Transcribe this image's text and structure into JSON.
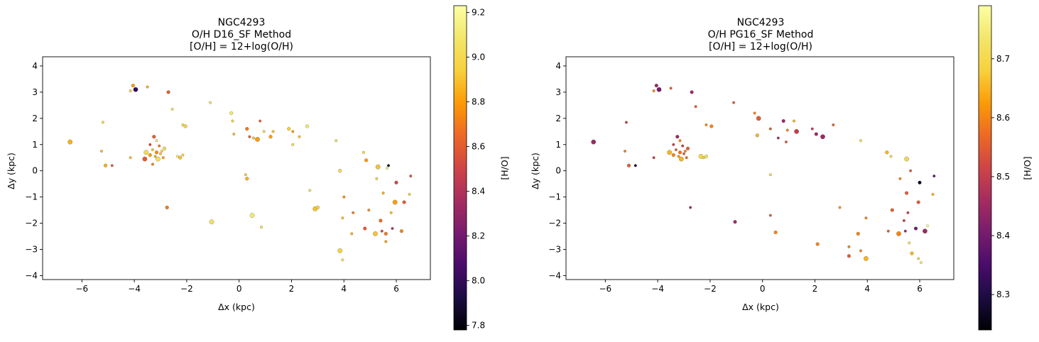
{
  "chart_data": [
    {
      "type": "scatter",
      "title_lines": [
        "NGC4293",
        "O/H D16_SF Method",
        "[O/H] = 12+log(O/H)"
      ],
      "xlabel": "Δx (kpc)",
      "ylabel": "Δy (kpc)",
      "xlim": [
        -7.5,
        7.3
      ],
      "ylim": [
        -4.15,
        4.35
      ],
      "xticks": [
        -6,
        -4,
        -2,
        0,
        2,
        4,
        6
      ],
      "yticks": [
        -4,
        -3,
        -2,
        -1,
        0,
        1,
        2,
        3,
        4
      ],
      "colorbar": {
        "label": "[H/O]",
        "colormap": "inferno",
        "range": [
          7.78,
          9.23
        ],
        "ticks": [
          7.8,
          8.0,
          8.2,
          8.4,
          8.6,
          8.8,
          9.0,
          9.2
        ]
      },
      "points": [
        [
          -6.45,
          1.1,
          8.85
        ],
        [
          -5.2,
          1.85,
          9.0
        ],
        [
          -5.25,
          0.75,
          8.9
        ],
        [
          -5.1,
          0.2,
          8.85
        ],
        [
          -4.85,
          0.2,
          8.6
        ],
        [
          -4.15,
          3.05,
          8.95
        ],
        [
          -4.05,
          3.25,
          8.8
        ],
        [
          -3.95,
          3.1,
          8.0
        ],
        [
          -3.5,
          3.2,
          8.85
        ],
        [
          -2.7,
          3.0,
          8.6
        ],
        [
          -2.55,
          2.35,
          9.05
        ],
        [
          -2.15,
          1.75,
          9.0
        ],
        [
          -2.05,
          1.7,
          8.95
        ],
        [
          -4.15,
          0.5,
          8.9
        ],
        [
          -3.55,
          0.7,
          9.0
        ],
        [
          -3.4,
          0.6,
          8.8
        ],
        [
          -3.3,
          0.8,
          8.9
        ],
        [
          -3.2,
          0.55,
          8.85
        ],
        [
          -3.15,
          0.7,
          8.75
        ],
        [
          -3.0,
          0.65,
          8.9
        ],
        [
          -2.95,
          0.75,
          8.95
        ],
        [
          -3.1,
          0.45,
          9.05
        ],
        [
          -3.05,
          0.95,
          8.7
        ],
        [
          -2.9,
          0.5,
          8.8
        ],
        [
          -3.25,
          1.3,
          8.6
        ],
        [
          -3.15,
          1.15,
          9.1
        ],
        [
          -3.4,
          1.0,
          8.5
        ],
        [
          -2.85,
          0.85,
          9.0
        ],
        [
          -3.6,
          0.45,
          8.6
        ],
        [
          -2.35,
          0.55,
          9.1
        ],
        [
          -2.25,
          0.5,
          8.9
        ],
        [
          -2.15,
          0.6,
          8.95
        ],
        [
          -3.3,
          0.25,
          8.7
        ],
        [
          -2.75,
          -1.4,
          8.7
        ],
        [
          -1.1,
          2.6,
          9.05
        ],
        [
          -1.05,
          -1.95,
          9.05
        ],
        [
          -0.3,
          2.2,
          9.1
        ],
        [
          -0.25,
          1.9,
          8.95
        ],
        [
          -0.2,
          1.4,
          8.9
        ],
        [
          0.3,
          1.6,
          8.7
        ],
        [
          0.4,
          1.3,
          8.6
        ],
        [
          0.55,
          1.25,
          8.9
        ],
        [
          0.7,
          1.2,
          8.8
        ],
        [
          0.8,
          1.9,
          8.6
        ],
        [
          0.95,
          1.5,
          9.0
        ],
        [
          1.2,
          1.3,
          8.8
        ],
        [
          1.3,
          1.5,
          8.9
        ],
        [
          0.25,
          -0.15,
          8.95
        ],
        [
          0.3,
          -0.3,
          8.85
        ],
        [
          0.5,
          -1.7,
          9.1
        ],
        [
          0.85,
          -2.15,
          9.05
        ],
        [
          1.9,
          1.6,
          8.95
        ],
        [
          2.05,
          1.5,
          8.8
        ],
        [
          2.3,
          1.3,
          8.9
        ],
        [
          2.6,
          1.7,
          9.1
        ],
        [
          2.05,
          1.0,
          9.0
        ],
        [
          2.9,
          -1.45,
          8.9
        ],
        [
          3.0,
          -1.4,
          8.95
        ],
        [
          2.7,
          -0.75,
          9.05
        ],
        [
          3.7,
          1.15,
          9.05
        ],
        [
          3.85,
          0.0,
          9.0
        ],
        [
          4.0,
          -1.0,
          8.75
        ],
        [
          3.95,
          -1.8,
          8.9
        ],
        [
          3.85,
          -3.05,
          8.95
        ],
        [
          3.95,
          -3.4,
          9.05
        ],
        [
          4.75,
          0.7,
          9.0
        ],
        [
          4.85,
          0.4,
          8.8
        ],
        [
          4.35,
          -1.6,
          8.7
        ],
        [
          4.3,
          -2.4,
          8.85
        ],
        [
          4.8,
          -2.2,
          8.6
        ],
        [
          5.2,
          -2.4,
          8.9
        ],
        [
          5.45,
          -2.3,
          8.5
        ],
        [
          5.6,
          -2.4,
          8.7
        ],
        [
          5.6,
          -2.7,
          8.8
        ],
        [
          5.85,
          -2.2,
          8.4
        ],
        [
          6.2,
          -2.3,
          8.75
        ],
        [
          5.8,
          -1.6,
          8.9
        ],
        [
          5.95,
          -1.2,
          8.8
        ],
        [
          6.3,
          -1.2,
          8.6
        ],
        [
          6.5,
          -0.9,
          8.95
        ],
        [
          6.55,
          -0.2,
          8.55
        ],
        [
          6.0,
          -0.45,
          8.5
        ],
        [
          5.65,
          0.1,
          9.15
        ],
        [
          5.7,
          0.2,
          7.8
        ],
        [
          5.3,
          0.15,
          8.9
        ],
        [
          5.25,
          -0.3,
          8.95
        ],
        [
          5.5,
          -0.85,
          8.85
        ],
        [
          5.4,
          -1.9,
          8.65
        ],
        [
          4.95,
          -1.5,
          8.75
        ]
      ]
    },
    {
      "type": "scatter",
      "title_lines": [
        "NGC4293",
        "O/H PG16_SF Method",
        "[O/H] = 12+log(O/H)"
      ],
      "xlabel": "Δx (kpc)",
      "ylabel": "Δy (kpc)",
      "xlim": [
        -7.5,
        7.3
      ],
      "ylim": [
        -4.15,
        4.35
      ],
      "xticks": [
        -6,
        -4,
        -2,
        0,
        2,
        4,
        6
      ],
      "yticks": [
        -4,
        -3,
        -2,
        -1,
        0,
        1,
        2,
        3,
        4
      ],
      "colorbar": {
        "label": "[H/O]",
        "colormap": "inferno",
        "range": [
          8.24,
          8.79
        ],
        "ticks": [
          8.3,
          8.4,
          8.5,
          8.6,
          8.7
        ]
      },
      "points": [
        [
          -6.45,
          1.1,
          8.45
        ],
        [
          -5.2,
          1.85,
          8.5
        ],
        [
          -5.25,
          0.75,
          8.6
        ],
        [
          -5.1,
          0.2,
          8.55
        ],
        [
          -4.85,
          0.2,
          8.25
        ],
        [
          -4.15,
          3.05,
          8.6
        ],
        [
          -4.05,
          3.25,
          8.45
        ],
        [
          -3.95,
          3.1,
          8.4
        ],
        [
          -3.5,
          3.15,
          8.55
        ],
        [
          -2.7,
          3.0,
          8.45
        ],
        [
          -2.55,
          2.45,
          8.55
        ],
        [
          -2.15,
          1.75,
          8.6
        ],
        [
          -1.95,
          1.7,
          8.6
        ],
        [
          -4.15,
          0.5,
          8.5
        ],
        [
          -3.55,
          0.7,
          8.65
        ],
        [
          -3.4,
          0.6,
          8.6
        ],
        [
          -3.3,
          0.8,
          8.55
        ],
        [
          -3.2,
          0.55,
          8.62
        ],
        [
          -3.15,
          0.7,
          8.58
        ],
        [
          -3.0,
          0.65,
          8.55
        ],
        [
          -2.95,
          0.75,
          8.6
        ],
        [
          -3.1,
          0.45,
          8.65
        ],
        [
          -3.05,
          0.95,
          8.5
        ],
        [
          -2.9,
          0.5,
          8.57
        ],
        [
          -3.25,
          1.3,
          8.45
        ],
        [
          -3.15,
          1.15,
          8.6
        ],
        [
          -3.4,
          1.0,
          8.5
        ],
        [
          -2.85,
          0.85,
          8.55
        ],
        [
          -2.35,
          0.55,
          8.7
        ],
        [
          -2.25,
          0.5,
          8.68
        ],
        [
          -2.15,
          0.55,
          8.72
        ],
        [
          -2.75,
          -1.4,
          8.45
        ],
        [
          -1.1,
          2.6,
          8.55
        ],
        [
          -1.05,
          -1.95,
          8.45
        ],
        [
          -0.3,
          2.2,
          8.6
        ],
        [
          -0.15,
          2.0,
          8.55
        ],
        [
          -0.2,
          1.35,
          8.65
        ],
        [
          0.3,
          1.6,
          8.55
        ],
        [
          0.6,
          1.25,
          8.45
        ],
        [
          0.8,
          1.9,
          8.45
        ],
        [
          0.95,
          1.55,
          8.6
        ],
        [
          1.2,
          1.9,
          8.65
        ],
        [
          1.3,
          1.5,
          8.5
        ],
        [
          0.9,
          1.1,
          8.55
        ],
        [
          0.3,
          -0.15,
          8.72
        ],
        [
          0.5,
          -2.35,
          8.6
        ],
        [
          0.3,
          -1.7,
          8.55
        ],
        [
          1.9,
          1.6,
          8.5
        ],
        [
          2.05,
          1.4,
          8.45
        ],
        [
          2.3,
          1.3,
          8.45
        ],
        [
          2.7,
          1.75,
          8.55
        ],
        [
          2.1,
          -2.8,
          8.6
        ],
        [
          2.95,
          -1.4,
          8.62
        ],
        [
          3.3,
          -2.9,
          8.6
        ],
        [
          3.3,
          -3.25,
          8.55
        ],
        [
          3.75,
          -3.05,
          8.6
        ],
        [
          3.95,
          -3.35,
          8.65
        ],
        [
          3.65,
          -2.4,
          8.6
        ],
        [
          3.75,
          1.15,
          8.72
        ],
        [
          3.95,
          -1.8,
          8.6
        ],
        [
          4.75,
          0.7,
          8.65
        ],
        [
          4.9,
          0.55,
          8.7
        ],
        [
          4.8,
          -2.3,
          8.55
        ],
        [
          5.2,
          -2.4,
          8.6
        ],
        [
          5.45,
          -2.3,
          8.45
        ],
        [
          5.6,
          -2.75,
          8.72
        ],
        [
          5.7,
          -3.15,
          8.65
        ],
        [
          5.95,
          -3.35,
          8.7
        ],
        [
          6.05,
          -3.5,
          8.75
        ],
        [
          5.85,
          -2.2,
          8.4
        ],
        [
          6.2,
          -2.3,
          8.45
        ],
        [
          6.3,
          -2.1,
          8.78
        ],
        [
          5.95,
          -1.2,
          8.55
        ],
        [
          6.5,
          -0.9,
          8.65
        ],
        [
          6.55,
          -0.2,
          8.38
        ],
        [
          6.0,
          -0.45,
          8.26
        ],
        [
          5.65,
          0.0,
          8.55
        ],
        [
          5.5,
          0.45,
          8.7
        ],
        [
          5.5,
          -0.85,
          8.55
        ],
        [
          5.25,
          -0.3,
          8.6
        ],
        [
          5.4,
          -1.9,
          8.5
        ],
        [
          4.95,
          -1.5,
          8.55
        ],
        [
          5.55,
          -1.6,
          8.5
        ]
      ]
    }
  ]
}
